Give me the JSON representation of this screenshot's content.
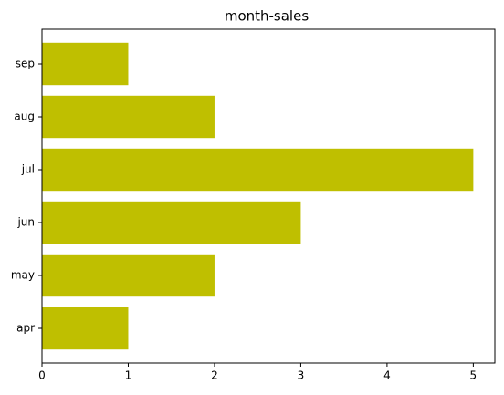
{
  "chart_data": {
    "type": "bar",
    "orientation": "horizontal",
    "title": "month-sales",
    "categories": [
      "apr",
      "may",
      "jun",
      "jul",
      "aug",
      "sep"
    ],
    "values": [
      1,
      2,
      3,
      5,
      2,
      1
    ],
    "color": "#bfbf00",
    "xlim": [
      0,
      5.25
    ],
    "xticks": [
      0,
      1,
      2,
      3,
      4,
      5
    ],
    "grid": false
  }
}
